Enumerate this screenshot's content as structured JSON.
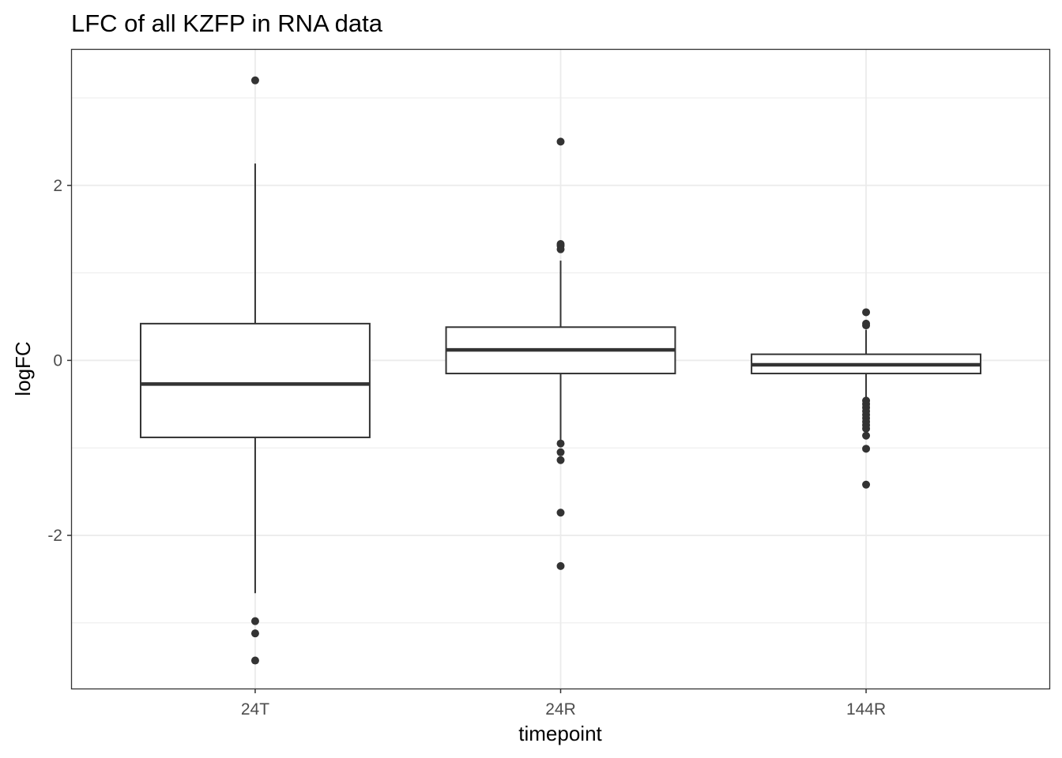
{
  "chart_data": {
    "type": "boxplot",
    "title": "LFC of all KZFP in RNA data",
    "xlabel": "timepoint",
    "ylabel": "logFC",
    "ylim": [
      -3.75,
      3.55
    ],
    "yticks": [
      -2,
      0,
      2
    ],
    "grid": true,
    "categories": [
      "24T",
      "24R",
      "144R"
    ],
    "boxes": [
      {
        "category": "24T",
        "q1": -0.88,
        "median": -0.27,
        "q3": 0.42,
        "whisker_low": -2.66,
        "whisker_high": 2.25,
        "outliers": [
          3.2,
          -2.98,
          -3.12,
          -3.43
        ]
      },
      {
        "category": "24R",
        "q1": -0.15,
        "median": 0.12,
        "q3": 0.38,
        "whisker_low": -0.93,
        "whisker_high": 1.14,
        "outliers": [
          2.5,
          1.33,
          1.31,
          1.27,
          -0.95,
          -1.05,
          -1.14,
          -1.74,
          -2.35
        ]
      },
      {
        "category": "144R",
        "q1": -0.15,
        "median": -0.05,
        "q3": 0.07,
        "whisker_low": -0.44,
        "whisker_high": 0.35,
        "outliers": [
          0.55,
          0.42,
          0.4,
          -0.46,
          -0.5,
          -0.54,
          -0.58,
          -0.62,
          -0.66,
          -0.7,
          -0.74,
          -0.78,
          -0.86,
          -1.01,
          -1.42
        ]
      }
    ],
    "colors": {
      "box_stroke": "#333333",
      "point": "#333333",
      "grid": "#ebebeb",
      "panel_border": "#333333",
      "tick": "#4d4d4d"
    }
  }
}
